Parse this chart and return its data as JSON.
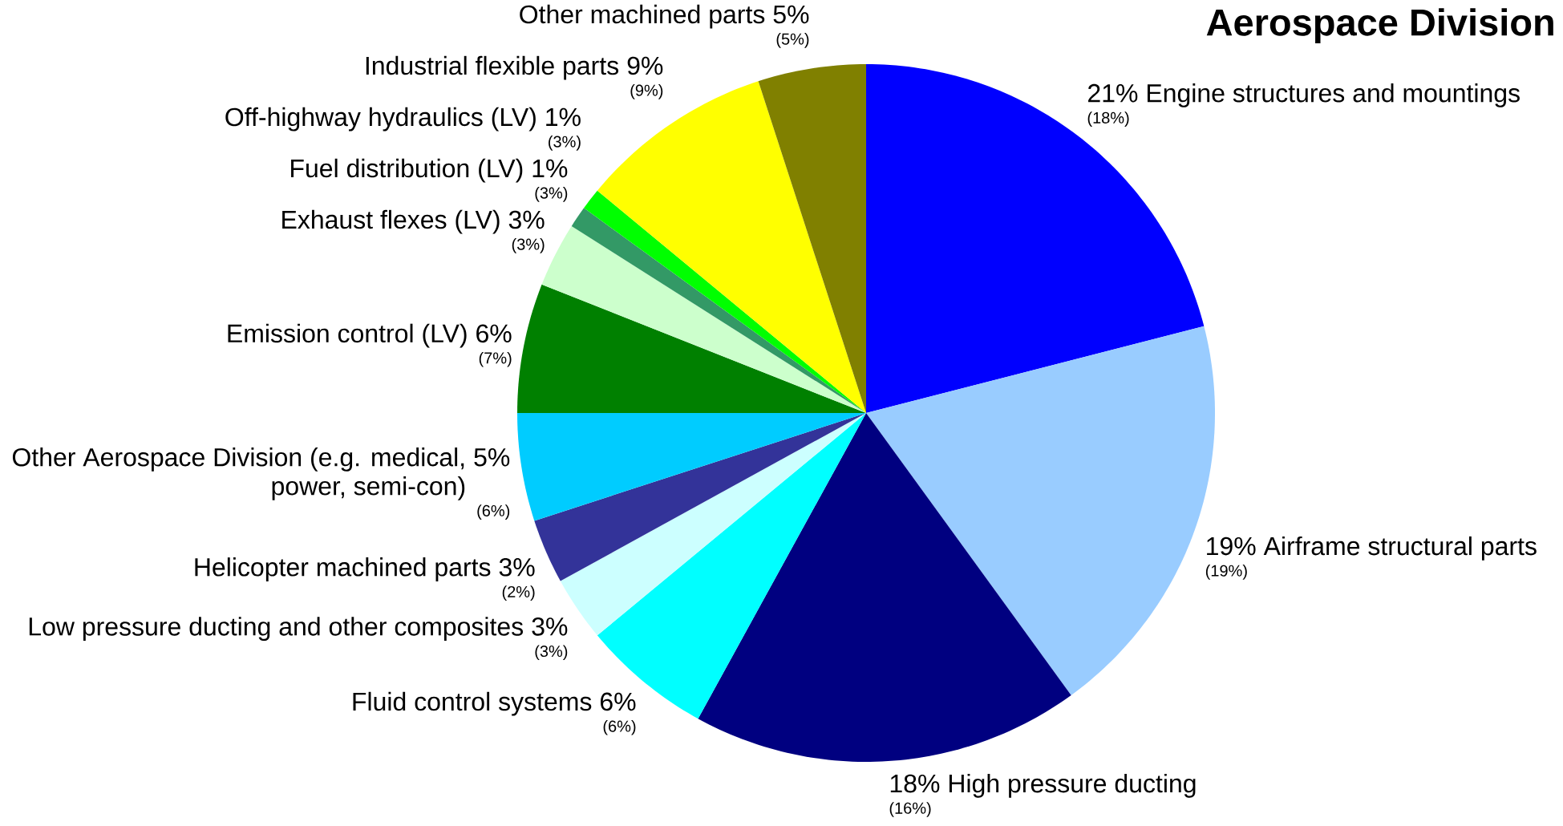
{
  "chart_data": {
    "type": "pie",
    "title": "Aerospace Division",
    "categories": [
      "Engine structures and mountings",
      "Airframe structural parts",
      "High pressure ducting",
      "Fluid control systems",
      "Low pressure ducting and other composites",
      "Helicopter machined parts",
      "Other Aerospace Division (e.g. medical, power, semi-con)",
      "Emission control (LV)",
      "Exhaust flexes (LV)",
      "Fuel distribution (LV)",
      "Off-highway hydraulics (LV)",
      "Industrial flexible parts",
      "Other machined parts"
    ],
    "values": [
      21,
      19,
      18,
      6,
      3,
      3,
      5,
      6,
      3,
      1,
      1,
      9,
      5
    ],
    "colors": [
      "#0000ff",
      "#99ccff",
      "#000080",
      "#00ffff",
      "#ccffff",
      "#333399",
      "#00ccff",
      "#008000",
      "#ccffcc",
      "#339966",
      "#00ff00",
      "#ffff00",
      "#808000"
    ],
    "value_labels": [
      "21%",
      "19%",
      "18%",
      "6%",
      "3%",
      "3%",
      "5%",
      "6%",
      "3%",
      "1%",
      "1%",
      "9%",
      "5%"
    ],
    "annotations": [
      "(18%)",
      "(19%)",
      "(16%)",
      "(6%)",
      "(3%)",
      "(2%)",
      "(6%)",
      "(7%)",
      "(3%)",
      "(3%)",
      "(3%)",
      "(9%)",
      "(5%)"
    ]
  }
}
